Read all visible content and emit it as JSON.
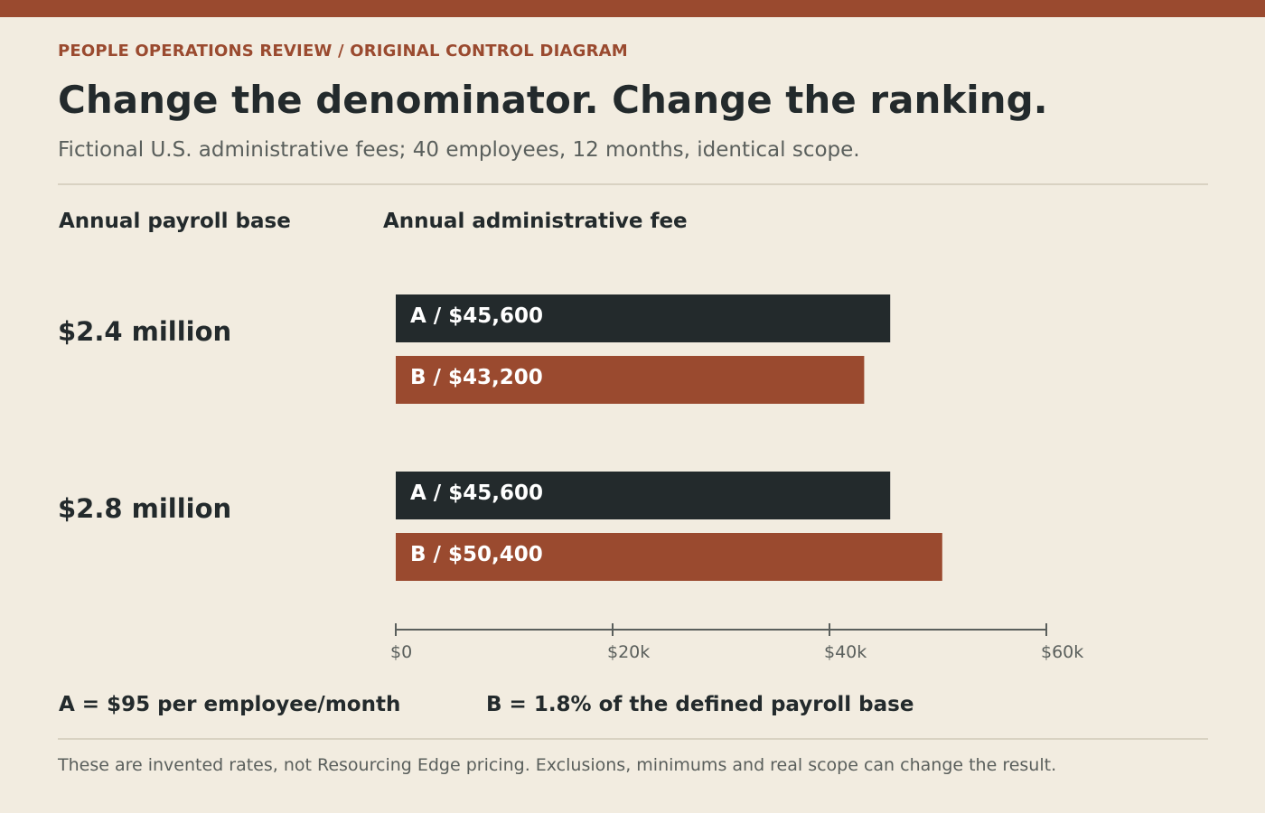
{
  "header": {
    "kicker": "PEOPLE OPERATIONS REVIEW / ORIGINAL CONTROL DIAGRAM",
    "title": "Change the denominator. Change the ranking.",
    "subtitle": "Fictional U.S. administrative fees; 40 employees, 12 months, identical scope."
  },
  "columns": {
    "left": "Annual payroll base",
    "right": "Annual administrative fee"
  },
  "legend": {
    "a": "A = $95 per employee/month",
    "b": "B = 1.8% of the defined payroll base"
  },
  "footnote": "These are invented rates, not Resourcing Edge pricing. Exclusions, minimums and real scope can change the result.",
  "colors": {
    "accent": "#9a4a2f",
    "series_a": "#232a2c",
    "series_b": "#9a4a2f",
    "bar_text": "#ffffff",
    "axis": "#5a5f5c"
  },
  "chart_data": {
    "type": "bar",
    "orientation": "horizontal",
    "categories": [
      "$2.4 million",
      "$2.8 million"
    ],
    "series": [
      {
        "name": "A",
        "values": [
          45600,
          45600
        ],
        "labels": [
          "A / $45,600",
          "A / $45,600"
        ]
      },
      {
        "name": "B",
        "values": [
          43200,
          50400
        ],
        "labels": [
          "B / $43,200",
          "B / $50,400"
        ]
      }
    ],
    "xlim": [
      0,
      60000
    ],
    "ticks": [
      0,
      20000,
      40000,
      60000
    ],
    "tick_labels": [
      "$0",
      "$20k",
      "$40k",
      "$60k"
    ],
    "grid": false,
    "legend": "bottom"
  }
}
